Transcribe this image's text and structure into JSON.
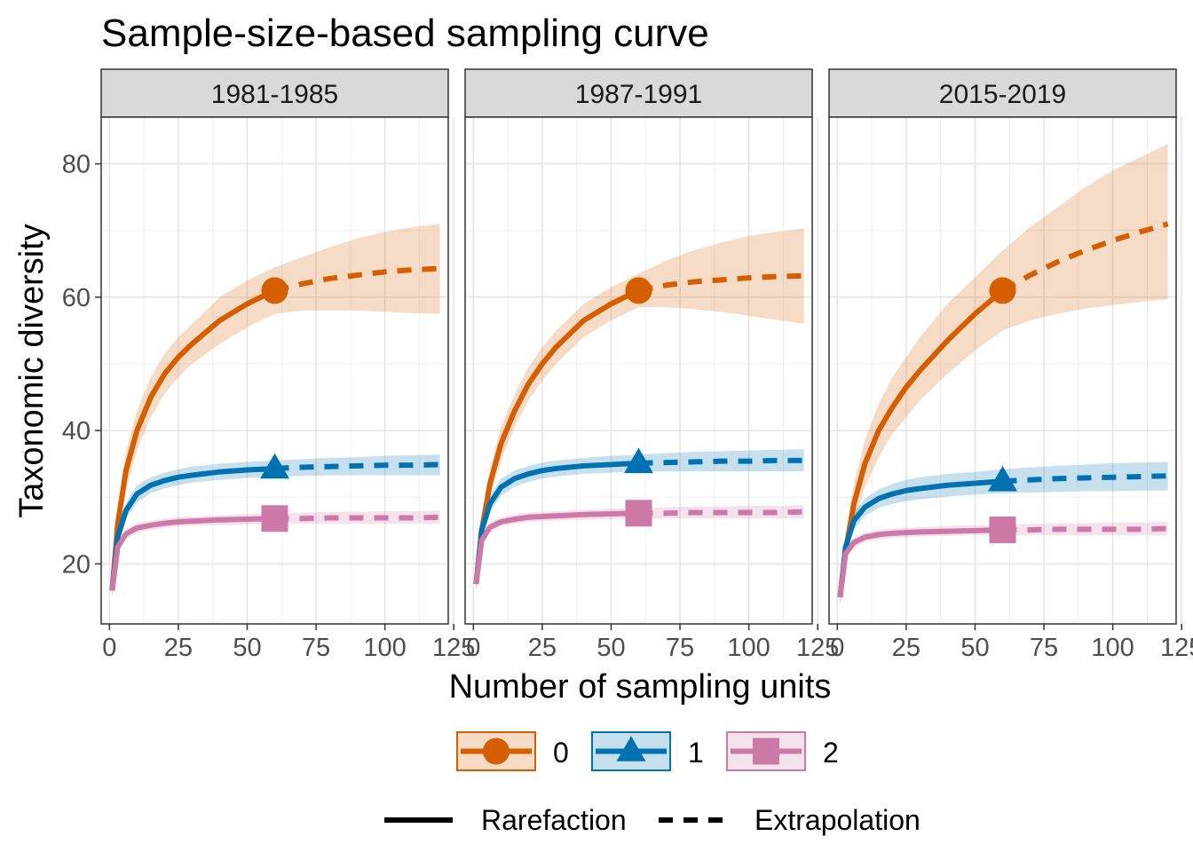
{
  "chart_data": {
    "type": "line",
    "title": "Sample-size-based sampling curve",
    "xlabel": "Number of sampling units",
    "ylabel": "Taxonomic diversity",
    "xlim": [
      -3,
      123
    ],
    "ylim": [
      11,
      87
    ],
    "x_ticks": [
      0,
      25,
      50,
      75,
      100,
      125
    ],
    "x_tick_labels": [
      "0",
      "25",
      "50",
      "75",
      "100",
      "125"
    ],
    "y_ticks": [
      20,
      40,
      60,
      80
    ],
    "y_tick_labels": [
      "20",
      "40",
      "60",
      "80"
    ],
    "grid": true,
    "observed_x": 60,
    "colors": {
      "0": "#D55E00",
      "1": "#0072B2",
      "2": "#CC79A7"
    },
    "legend_position": "bottom",
    "legend_order": [
      "0",
      "1",
      "2"
    ],
    "linetype_legend": [
      "Rarefaction",
      "Extrapolation"
    ],
    "panels": [
      {
        "label": "1981-1985",
        "series": [
          {
            "name": "0",
            "marker": "circle",
            "x": [
              1,
              3,
              6,
              10,
              15,
              20,
              25,
              30,
              40,
              50,
              60,
              70,
              80,
              90,
              100,
              110,
              120
            ],
            "y": [
              16,
              26,
              34,
              40,
              45,
              48.5,
              51,
              53,
              56.5,
              59,
              61,
              62,
              62.8,
              63.3,
              63.8,
              64.1,
              64.3
            ],
            "lower": [
              15,
              24,
              31,
              37,
              42,
              45.5,
              48,
              50,
              53,
              55.5,
              57.5,
              58,
              58,
              58,
              57.8,
              57.6,
              57.5
            ],
            "upper": [
              17,
              28,
              37,
              43,
              48,
              51.5,
              54,
              56,
              60,
              62.5,
              64.5,
              66,
              67.5,
              68.8,
              69.8,
              70.5,
              71
            ]
          },
          {
            "name": "1",
            "marker": "triangle",
            "x": [
              1,
              3,
              6,
              10,
              15,
              20,
              25,
              30,
              40,
              50,
              60,
              70,
              80,
              90,
              100,
              110,
              120
            ],
            "y": [
              16,
              24,
              28,
              30.5,
              31.8,
              32.5,
              33,
              33.3,
              33.8,
              34.1,
              34.3,
              34.5,
              34.6,
              34.7,
              34.8,
              34.8,
              34.9
            ],
            "lower": [
              15,
              23,
              26.8,
              29.2,
              30.6,
              31.3,
              31.8,
              32.2,
              32.6,
              32.9,
              33.1,
              33.2,
              33.3,
              33.3,
              33.3,
              33.3,
              33.3
            ],
            "upper": [
              17,
              25,
              29.2,
              31.8,
              33,
              33.7,
              34.2,
              34.6,
              35,
              35.3,
              35.5,
              35.7,
              35.9,
              36,
              36.2,
              36.3,
              36.4
            ]
          },
          {
            "name": "2",
            "marker": "square",
            "x": [
              1,
              3,
              6,
              10,
              15,
              20,
              25,
              30,
              40,
              50,
              60,
              70,
              80,
              90,
              100,
              110,
              120
            ],
            "y": [
              16,
              22.5,
              24.5,
              25.4,
              25.8,
              26.1,
              26.3,
              26.4,
              26.6,
              26.7,
              26.8,
              26.8,
              26.9,
              26.9,
              26.9,
              26.9,
              27
            ],
            "lower": [
              15.2,
              21.8,
              23.8,
              24.7,
              25.1,
              25.4,
              25.6,
              25.7,
              25.8,
              25.9,
              26,
              26,
              26,
              26,
              26,
              26,
              26
            ],
            "upper": [
              16.8,
              23.2,
              25.2,
              26.1,
              26.5,
              26.8,
              27,
              27.1,
              27.3,
              27.5,
              27.6,
              27.7,
              27.8,
              27.8,
              27.9,
              27.9,
              28
            ]
          }
        ]
      },
      {
        "label": "1987-1991",
        "series": [
          {
            "name": "0",
            "marker": "circle",
            "x": [
              1,
              3,
              6,
              10,
              15,
              20,
              25,
              30,
              40,
              50,
              60,
              70,
              80,
              90,
              100,
              110,
              120
            ],
            "y": [
              17,
              25,
              32,
              38,
              43,
              47,
              50,
              52.5,
              56.5,
              59,
              61,
              61.8,
              62.3,
              62.6,
              62.9,
              63.1,
              63.2
            ],
            "lower": [
              16,
              23,
              30,
              35.5,
              40.5,
              44.5,
              47.5,
              50,
              54,
              56.5,
              58.5,
              58.5,
              58.2,
              57.8,
              57.2,
              56.6,
              56
            ],
            "upper": [
              18,
              27,
              34,
              40.5,
              45.5,
              49.5,
              52.5,
              55,
              59,
              61.5,
              63.5,
              65.5,
              67,
              68.2,
              69.2,
              69.8,
              70.3
            ]
          },
          {
            "name": "1",
            "marker": "triangle",
            "x": [
              1,
              3,
              6,
              10,
              15,
              20,
              25,
              30,
              40,
              50,
              60,
              70,
              80,
              90,
              100,
              110,
              120
            ],
            "y": [
              17,
              25,
              29,
              31.5,
              32.8,
              33.5,
              34,
              34.3,
              34.7,
              34.9,
              35.1,
              35.2,
              35.3,
              35.4,
              35.4,
              35.5,
              35.5
            ],
            "lower": [
              16,
              24,
              27.8,
              30.2,
              31.6,
              32.3,
              32.8,
              33.1,
              33.5,
              33.7,
              33.9,
              33.9,
              33.9,
              33.9,
              33.9,
              33.9,
              33.9
            ],
            "upper": [
              18,
              26,
              30.2,
              32.8,
              34,
              34.7,
              35.2,
              35.5,
              35.9,
              36.2,
              36.4,
              36.6,
              36.8,
              36.9,
              37,
              37.1,
              37.2
            ]
          },
          {
            "name": "2",
            "marker": "square",
            "x": [
              1,
              3,
              6,
              10,
              15,
              20,
              25,
              30,
              40,
              50,
              60,
              70,
              80,
              90,
              100,
              110,
              120
            ],
            "y": [
              17,
              23.5,
              25.5,
              26.3,
              26.7,
              27,
              27.1,
              27.2,
              27.4,
              27.5,
              27.6,
              27.6,
              27.7,
              27.7,
              27.7,
              27.7,
              27.8
            ],
            "lower": [
              16.2,
              22.8,
              24.8,
              25.6,
              26,
              26.3,
              26.4,
              26.5,
              26.6,
              26.7,
              26.8,
              26.8,
              26.8,
              26.8,
              26.8,
              26.8,
              26.8
            ],
            "upper": [
              17.8,
              24.2,
              26.2,
              27,
              27.4,
              27.7,
              27.8,
              27.9,
              28.1,
              28.3,
              28.4,
              28.5,
              28.6,
              28.6,
              28.7,
              28.7,
              28.8
            ]
          }
        ]
      },
      {
        "label": "2015-2019",
        "series": [
          {
            "name": "0",
            "marker": "circle",
            "x": [
              1,
              3,
              6,
              10,
              15,
              20,
              25,
              30,
              40,
              50,
              60,
              70,
              80,
              90,
              100,
              110,
              120
            ],
            "y": [
              15,
              22,
              29,
              35,
              40,
              43.5,
              46.5,
              49,
              53.5,
              57.5,
              61,
              63.3,
              65.3,
              67,
              68.5,
              69.8,
              71
            ],
            "lower": [
              14,
              20,
              26,
              31.5,
              36,
              39.5,
              42,
              44.5,
              48.5,
              52,
              55,
              56.5,
              57.5,
              58.3,
              58.8,
              59.3,
              59.7
            ],
            "upper": [
              16,
              24,
              32,
              38.5,
              44,
              48,
              51,
              54,
              59,
              63,
              67,
              70.5,
              73.5,
              76.5,
              79,
              81,
              83
            ]
          },
          {
            "name": "1",
            "marker": "triangle",
            "x": [
              1,
              3,
              6,
              10,
              15,
              20,
              25,
              30,
              40,
              50,
              60,
              70,
              80,
              90,
              100,
              110,
              120
            ],
            "y": [
              15,
              22.5,
              26.5,
              28.5,
              29.8,
              30.5,
              31,
              31.3,
              31.8,
              32.1,
              32.4,
              32.6,
              32.8,
              32.9,
              33,
              33.1,
              33.2
            ],
            "lower": [
              14,
              21.3,
              25.2,
              27.2,
              28.4,
              29,
              29.4,
              29.7,
              30.1,
              30.4,
              30.6,
              30.7,
              30.8,
              30.9,
              30.9,
              31,
              31
            ],
            "upper": [
              16,
              23.7,
              27.8,
              29.8,
              31.2,
              32,
              32.6,
              33,
              33.5,
              33.8,
              34.2,
              34.5,
              34.7,
              34.9,
              35.1,
              35.2,
              35.3
            ]
          },
          {
            "name": "2",
            "marker": "square",
            "x": [
              1,
              3,
              6,
              10,
              15,
              20,
              25,
              30,
              40,
              50,
              60,
              70,
              80,
              90,
              100,
              110,
              120
            ],
            "y": [
              15,
              21.5,
              23.2,
              24,
              24.4,
              24.6,
              24.7,
              24.8,
              24.9,
              25,
              25.1,
              25.1,
              25.2,
              25.2,
              25.2,
              25.2,
              25.3
            ],
            "lower": [
              14.2,
              20.8,
              22.5,
              23.3,
              23.7,
              23.9,
              24,
              24.1,
              24.2,
              24.3,
              24.3,
              24.3,
              24.3,
              24.3,
              24.3,
              24.3,
              24.3
            ],
            "upper": [
              15.8,
              22.2,
              23.9,
              24.7,
              25.1,
              25.3,
              25.4,
              25.5,
              25.7,
              25.8,
              25.9,
              26,
              26.1,
              26.1,
              26.2,
              26.2,
              26.3
            ]
          }
        ]
      }
    ]
  }
}
